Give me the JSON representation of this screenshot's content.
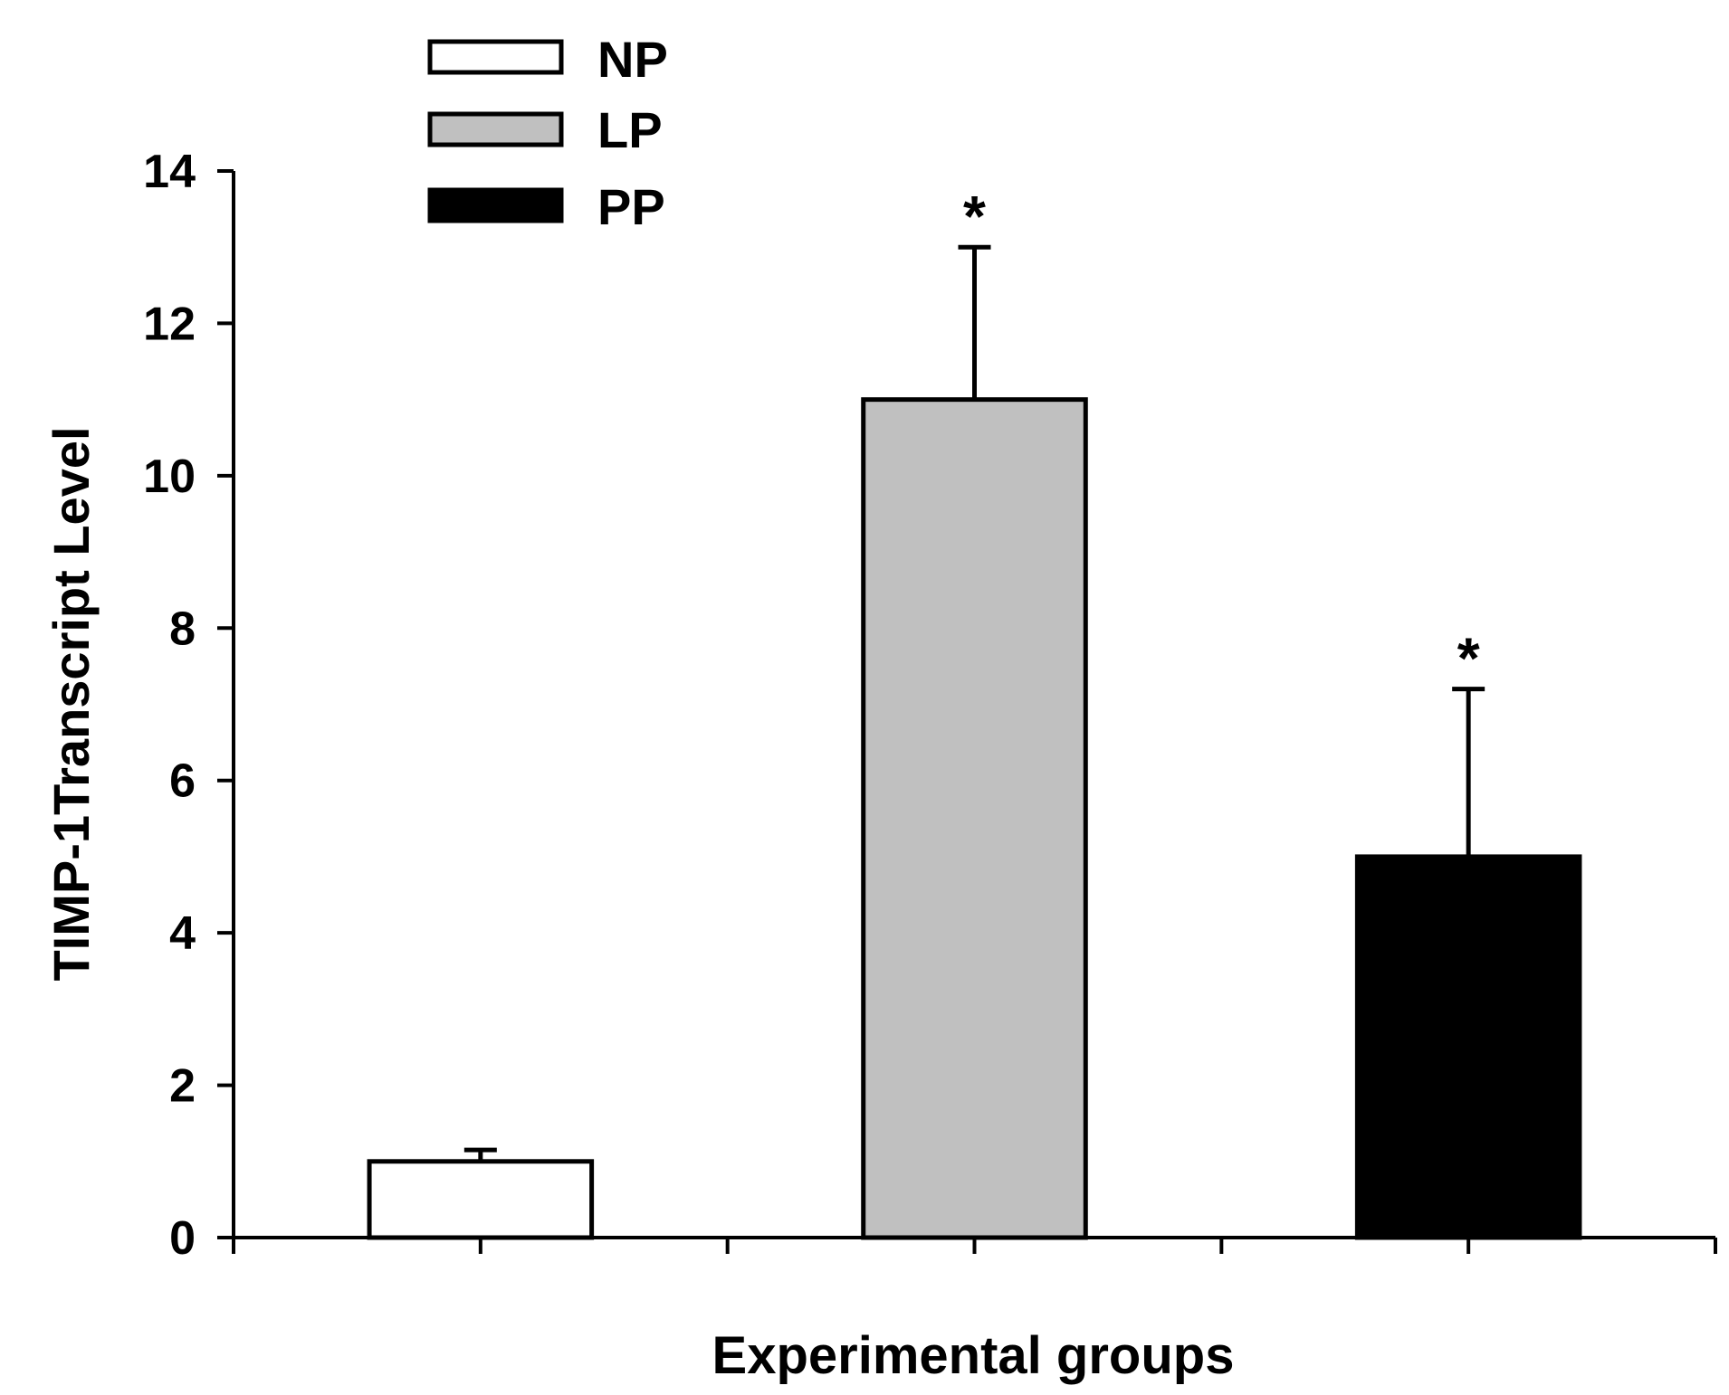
{
  "chart_data": {
    "type": "bar",
    "title": "",
    "xlabel": "Experimental groups",
    "ylabel": "TIMP-1Transcript Level",
    "ylim": [
      0,
      14
    ],
    "yticks": [
      "0",
      "2",
      "4",
      "6",
      "8",
      "10",
      "12",
      "14"
    ],
    "grid": false,
    "legend_position": "top-left",
    "series": [
      {
        "name": "NP",
        "value": 1.0,
        "error": 0.15,
        "color": "#ffffff",
        "annotation": ""
      },
      {
        "name": "LP",
        "value": 11.0,
        "error": 2.0,
        "color": "#c0c0c0",
        "annotation": "*"
      },
      {
        "name": "PP",
        "value": 5.0,
        "error": 2.2,
        "color": "#000000",
        "annotation": "*"
      }
    ]
  }
}
